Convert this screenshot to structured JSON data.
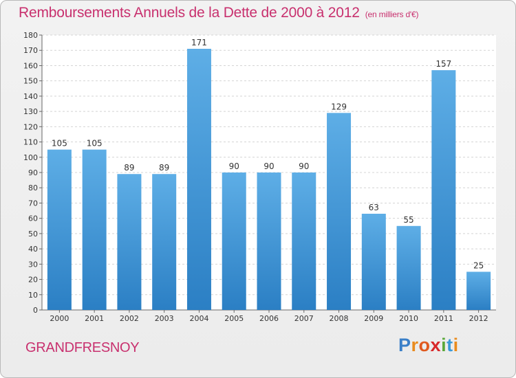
{
  "title": "Remboursements Annuels de la Dette de 2000 à 2012",
  "unit": "(en milliers d'€)",
  "commune": "GRANDFRESNOY",
  "logo": {
    "letters": [
      "P",
      "r",
      "o",
      "x",
      "i",
      "t",
      "i"
    ],
    "colors": [
      "#3a7fc8",
      "#e98b1e",
      "#e05a1f",
      "#d8282a",
      "#5aa83a",
      "#3a9ad8",
      "#e98b1e"
    ]
  },
  "colors": {
    "bar_light": "#5eaee6",
    "bar_dark": "#2b7fc4",
    "title": "#c8306e"
  },
  "chart_data": {
    "type": "bar",
    "categories": [
      "2000",
      "2001",
      "2002",
      "2003",
      "2004",
      "2005",
      "2006",
      "2007",
      "2008",
      "2009",
      "2010",
      "2011",
      "2012"
    ],
    "values": [
      105,
      105,
      89,
      89,
      171,
      90,
      90,
      90,
      129,
      63,
      55,
      157,
      25
    ],
    "ylim": [
      0,
      180
    ],
    "yticks": [
      0,
      10,
      20,
      30,
      40,
      50,
      60,
      70,
      80,
      90,
      100,
      110,
      120,
      130,
      140,
      150,
      160,
      170,
      180
    ],
    "grid": true
  }
}
